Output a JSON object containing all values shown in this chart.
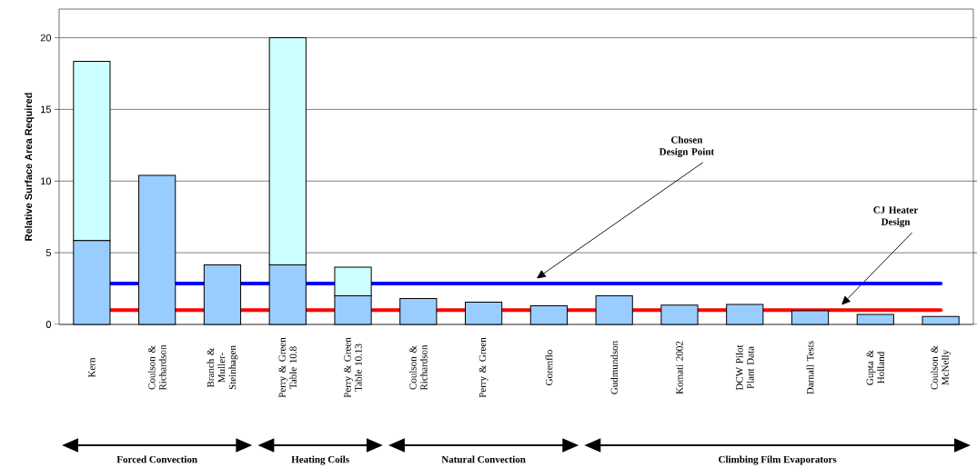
{
  "chart_data": {
    "type": "bar",
    "stacked": true,
    "ylabel": "Relative Surface Area Required",
    "categories": [
      "Kern",
      "Coulson & Richardson",
      "Branch & Muller-Steinhagen",
      "Perry & Green Table 10.8",
      "Perry & Green Table 10.13",
      "Coulson & Richardson",
      "Perry & Green",
      "Gorenflo",
      "Gudmundson",
      "Komati 2002",
      "DCW Pilot Plant Data",
      "Darnall Tests",
      "Gupta & Holland",
      "Coulson & McNelly"
    ],
    "series": [
      {
        "color": "#99ccff",
        "values": [
          5.85,
          10.4,
          4.15,
          4.15,
          2.0,
          1.8,
          1.55,
          1.3,
          2.0,
          1.35,
          1.4,
          0.95,
          0.7,
          0.55
        ]
      },
      {
        "color": "#ccffff",
        "values": [
          12.5,
          null,
          null,
          15.85,
          2.0,
          null,
          null,
          null,
          null,
          null,
          null,
          null,
          null,
          null
        ]
      }
    ],
    "ylim": [
      0,
      22
    ],
    "yticks": [
      0,
      5,
      10,
      15,
      20
    ],
    "grid": "y",
    "ref_lines": [
      {
        "axis": "y",
        "value": 2.85,
        "color": "#0000ff"
      },
      {
        "axis": "y",
        "value": 1.0,
        "color": "#ff0000"
      }
    ],
    "annotations": [
      "Chosen Design Point",
      "CJ Heater Design",
      "Forced Convection",
      "Heating Coils",
      "Natural Convection",
      "Climbing Film Evaporators"
    ]
  }
}
